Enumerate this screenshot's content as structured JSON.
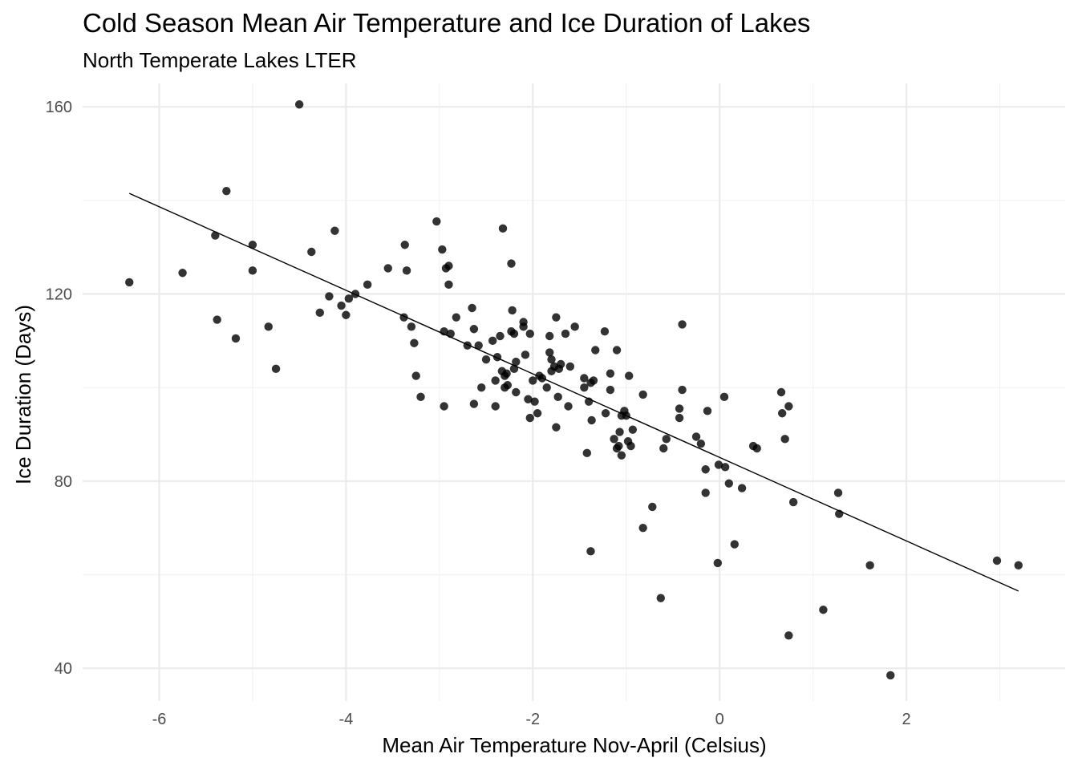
{
  "chart_data": {
    "type": "scatter",
    "title": "Cold Season Mean Air Temperature and Ice Duration of Lakes",
    "subtitle": "North Temperate Lakes LTER",
    "xlabel": "Mean Air Temperature Nov-April (Celsius)",
    "ylabel": "Ice Duration (Days)",
    "xlim": [
      -6.82,
      3.7
    ],
    "ylim": [
      33,
      165
    ],
    "x_ticks": [
      -6,
      -4,
      -2,
      0,
      2
    ],
    "y_ticks": [
      40,
      80,
      120,
      160
    ],
    "grid": true,
    "trend_line": {
      "x": [
        -6.32,
        3.2
      ],
      "y": [
        141.5,
        56.5
      ]
    },
    "points": [
      [
        -6.32,
        122.5
      ],
      [
        -5.75,
        124.5
      ],
      [
        -5.38,
        114.5
      ],
      [
        -5.4,
        132.5
      ],
      [
        -5.28,
        142
      ],
      [
        -5.18,
        110.5
      ],
      [
        -5.0,
        130.5
      ],
      [
        -5.0,
        125
      ],
      [
        -4.83,
        113
      ],
      [
        -4.75,
        104
      ],
      [
        -4.5,
        160.5
      ],
      [
        -4.37,
        129
      ],
      [
        -4.28,
        116
      ],
      [
        -4.18,
        119.5
      ],
      [
        -4.12,
        133.5
      ],
      [
        -4.05,
        117.5
      ],
      [
        -4.0,
        115.5
      ],
      [
        -3.97,
        119
      ],
      [
        -3.9,
        120
      ],
      [
        -3.77,
        122
      ],
      [
        -3.55,
        125.5
      ],
      [
        -3.38,
        115
      ],
      [
        -3.37,
        130.5
      ],
      [
        -3.35,
        125
      ],
      [
        -3.3,
        113
      ],
      [
        -3.27,
        109.5
      ],
      [
        -3.25,
        102.5
      ],
      [
        -3.2,
        98
      ],
      [
        -3.03,
        135.5
      ],
      [
        -2.97,
        129.5
      ],
      [
        -2.95,
        112
      ],
      [
        -2.95,
        96
      ],
      [
        -2.93,
        125.5
      ],
      [
        -2.9,
        126
      ],
      [
        -2.9,
        122
      ],
      [
        -2.88,
        111.5
      ],
      [
        -2.82,
        115
      ],
      [
        -2.7,
        109
      ],
      [
        -2.65,
        117
      ],
      [
        -2.63,
        112.5
      ],
      [
        -2.63,
        96.5
      ],
      [
        -2.58,
        109
      ],
      [
        -2.55,
        100
      ],
      [
        -2.5,
        106
      ],
      [
        -2.43,
        110
      ],
      [
        -2.4,
        101.5
      ],
      [
        -2.4,
        96
      ],
      [
        -2.38,
        106.5
      ],
      [
        -2.35,
        111
      ],
      [
        -2.33,
        103.5
      ],
      [
        -2.32,
        134
      ],
      [
        -2.3,
        100
      ],
      [
        -2.3,
        102.5
      ],
      [
        -2.28,
        103
      ],
      [
        -2.27,
        100.5
      ],
      [
        -2.23,
        126.5
      ],
      [
        -2.23,
        112
      ],
      [
        -2.22,
        116.5
      ],
      [
        -2.2,
        104
      ],
      [
        -2.2,
        111.5
      ],
      [
        -2.18,
        105.5
      ],
      [
        -2.18,
        99
      ],
      [
        -2.1,
        114
      ],
      [
        -2.1,
        113
      ],
      [
        -2.08,
        107
      ],
      [
        -2.05,
        97.5
      ],
      [
        -2.03,
        111.5
      ],
      [
        -2.03,
        93.5
      ],
      [
        -2.0,
        101.5
      ],
      [
        -1.98,
        97
      ],
      [
        -1.95,
        94.5
      ],
      [
        -1.93,
        102.5
      ],
      [
        -1.9,
        102
      ],
      [
        -1.85,
        100
      ],
      [
        -1.82,
        107.5
      ],
      [
        -1.82,
        111
      ],
      [
        -1.8,
        103.5
      ],
      [
        -1.8,
        106
      ],
      [
        -1.77,
        104.5
      ],
      [
        -1.75,
        115
      ],
      [
        -1.75,
        91.5
      ],
      [
        -1.73,
        98
      ],
      [
        -1.72,
        104
      ],
      [
        -1.7,
        105
      ],
      [
        -1.65,
        111.5
      ],
      [
        -1.62,
        96
      ],
      [
        -1.6,
        104.5
      ],
      [
        -1.55,
        113
      ],
      [
        -1.45,
        102
      ],
      [
        -1.45,
        100
      ],
      [
        -1.42,
        86
      ],
      [
        -1.4,
        97
      ],
      [
        -1.38,
        101
      ],
      [
        -1.38,
        65
      ],
      [
        -1.37,
        93
      ],
      [
        -1.35,
        101.5
      ],
      [
        -1.33,
        108
      ],
      [
        -1.23,
        112
      ],
      [
        -1.22,
        94.5
      ],
      [
        -1.17,
        103
      ],
      [
        -1.17,
        99.5
      ],
      [
        -1.13,
        89
      ],
      [
        -1.1,
        108
      ],
      [
        -1.1,
        87
      ],
      [
        -1.08,
        87.5
      ],
      [
        -1.07,
        90.5
      ],
      [
        -1.05,
        85.5
      ],
      [
        -1.05,
        94
      ],
      [
        -1.02,
        95
      ],
      [
        -1.0,
        94
      ],
      [
        -0.98,
        88.5
      ],
      [
        -0.97,
        102.5
      ],
      [
        -0.95,
        87.5
      ],
      [
        -0.93,
        91
      ],
      [
        -0.82,
        98.5
      ],
      [
        -0.82,
        70
      ],
      [
        -0.72,
        74.5
      ],
      [
        -0.63,
        55
      ],
      [
        -0.6,
        87
      ],
      [
        -0.57,
        89
      ],
      [
        -0.43,
        93.5
      ],
      [
        -0.43,
        95.5
      ],
      [
        -0.4,
        99.5
      ],
      [
        -0.4,
        113.5
      ],
      [
        -0.25,
        89.5
      ],
      [
        -0.2,
        88
      ],
      [
        -0.15,
        82.5
      ],
      [
        -0.15,
        77.5
      ],
      [
        -0.13,
        95
      ],
      [
        -0.02,
        62.5
      ],
      [
        -0.01,
        83.5
      ],
      [
        0.05,
        98
      ],
      [
        0.06,
        83
      ],
      [
        0.1,
        79.5
      ],
      [
        0.16,
        66.5
      ],
      [
        0.24,
        78.5
      ],
      [
        0.36,
        87.5
      ],
      [
        0.4,
        87
      ],
      [
        0.66,
        99
      ],
      [
        0.67,
        94.5
      ],
      [
        0.7,
        89
      ],
      [
        0.74,
        96
      ],
      [
        0.74,
        47
      ],
      [
        0.79,
        75.5
      ],
      [
        1.11,
        52.5
      ],
      [
        1.27,
        77.5
      ],
      [
        1.28,
        73
      ],
      [
        1.61,
        62
      ],
      [
        1.83,
        38.5
      ],
      [
        2.97,
        63
      ],
      [
        3.2,
        62
      ]
    ]
  }
}
